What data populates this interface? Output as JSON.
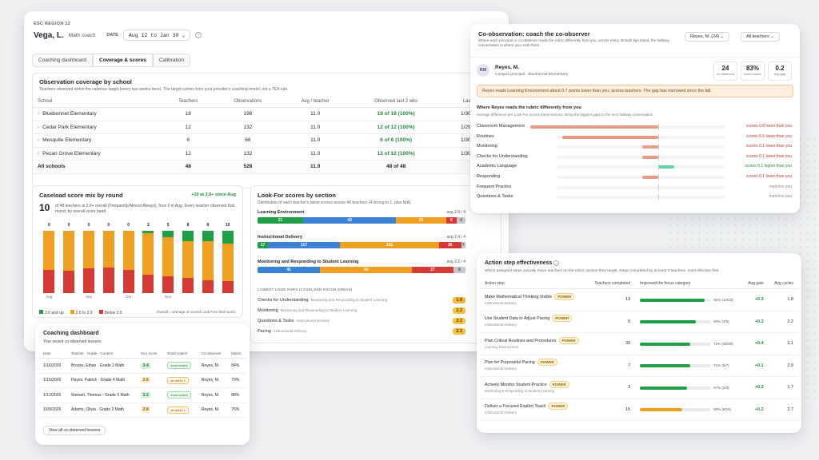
{
  "colors": {
    "green": "#1e9e45",
    "orange": "#f0a020",
    "red": "#d63a34",
    "blue": "#3b82d6",
    "grey": "#c5c9ce",
    "salmon": "#e89a85",
    "teal": "#5fd3a9"
  },
  "header": {
    "region": "ESC REGION 12",
    "name": "Vega, L.",
    "role": "Math coach",
    "date_label": "DATE",
    "date_value": "Aug 12 to Jan 30",
    "tabs": [
      "Coaching dashboard",
      "Coverage & scores",
      "Calibration"
    ]
  },
  "coverage": {
    "title": "Observation coverage by school",
    "subtitle": "Teachers observed within the cadence target (every two weeks here). The target comes from your provider's coaching model, not a TEA rule.",
    "headers": [
      "School",
      "Teachers",
      "Observations",
      "Avg / teacher",
      "Observed last 2 wks",
      "Last visit"
    ],
    "rows": [
      [
        "Bluebonnet Elementary",
        "18",
        "198",
        "11.0",
        "18 of 18 (100%)",
        "1/30/2026"
      ],
      [
        "Cedar Park Elementary",
        "12",
        "132",
        "11.0",
        "12 of 12 (100%)",
        "1/29/2026"
      ],
      [
        "Mesquite Elementary",
        "6",
        "66",
        "11.0",
        "6 of 6 (100%)",
        "1/30/2026"
      ],
      [
        "Pecan Grove Elementary",
        "12",
        "132",
        "11.0",
        "12 of 12 (100%)",
        "1/30/2026"
      ]
    ],
    "total": [
      "All schools",
      "48",
      "528",
      "11.0",
      "48 of 48",
      ""
    ]
  },
  "caseload": {
    "title": "Caseload score mix by round",
    "delta": "+10 at 3.0+ since Aug",
    "big": "10",
    "desc": "of 48 teachers at 3.0+ overall (Frequently/Almost Always), from 0 in Aug. Every teacher observed that round, by overall score band.",
    "top_labels": [
      "0",
      "0",
      "0",
      "0",
      "0",
      "2",
      "5",
      "8",
      "8",
      "10"
    ],
    "months": [
      "Aug",
      "",
      "Sep",
      "",
      "Oct",
      "",
      "Nov",
      "",
      "",
      ""
    ],
    "legend": [
      "3.0 and up",
      "2.0 to 2.9",
      "Below 2.0"
    ],
    "note": "Overall = average of scored Look Fors that round."
  },
  "caseload_chart": {
    "type": "bar",
    "series": [
      {
        "name": "3.0 and up",
        "values": [
          0,
          0,
          0,
          0,
          0,
          2,
          5,
          8,
          8,
          10
        ]
      },
      {
        "name": "2.0 to 2.9",
        "values": [
          30,
          31,
          29,
          28,
          30,
          32,
          30,
          28,
          30,
          29
        ]
      },
      {
        "name": "Below 2.0",
        "values": [
          18,
          17,
          19,
          20,
          18,
          14,
          13,
          12,
          10,
          9
        ]
      }
    ]
  },
  "lookfor": {
    "title": "Look-For scores by section",
    "desc": "Distribution of each teacher's latest scores across 48 teachers (4 strong to 1, plus N/A).",
    "sections": [
      {
        "name": "Learning Environment",
        "avg": "avg 2.9 / 4",
        "segs": [
          [
            "21",
            21,
            "green"
          ],
          [
            "43",
            43,
            "blue"
          ],
          [
            "23",
            23,
            "orange"
          ],
          [
            "5",
            5,
            "red"
          ],
          [
            "4",
            4,
            "grey"
          ]
        ]
      },
      {
        "name": "Instructional Delivery",
        "avg": "avg 2.4 / 4",
        "segs": [
          [
            "17",
            17,
            "green"
          ],
          [
            "117",
            117,
            "blue"
          ],
          [
            "161",
            161,
            "orange"
          ],
          [
            "36",
            36,
            "red"
          ],
          [
            "7",
            7,
            "grey"
          ]
        ]
      },
      {
        "name": "Monitoring and Responding to Student Learning",
        "avg": "avg 2.2 / 4",
        "segs": [
          [
            "41",
            41,
            "blue"
          ],
          [
            "60",
            60,
            "orange"
          ],
          [
            "27",
            27,
            "red"
          ],
          [
            "8",
            8,
            "grey"
          ]
        ]
      }
    ],
    "focus_title": "LOWEST LOOK FORS (CASELOAD FOCUS AREAS)",
    "focus": [
      [
        "Checks for Understanding",
        "Monitoring and Responding to Student Learning",
        "1.9"
      ],
      [
        "Monitoring",
        "Monitoring and Responding to Student Learning",
        "2.2"
      ],
      [
        "Questions & Tasks",
        "Instructional Delivery",
        "2.3"
      ],
      [
        "Pacing",
        "Instructional Delivery",
        "2.3"
      ]
    ]
  },
  "coaching": {
    "title": "Coaching dashboard",
    "subtitle": "Your recent co-observed lessons",
    "headers": [
      "Date",
      "Teacher · Grade · Content",
      "Your score",
      "Exact match",
      "Co-observer",
      "Match"
    ],
    "rows": [
      [
        "1/16/2026",
        "Brooks, Ethan · Grade 2 Math",
        "3.4",
        "exact match",
        "Reyes, M.",
        "84%"
      ],
      [
        "1/15/2026",
        "Hayes, Patrick · Grade 4 Math",
        "2.6",
        "all within 1",
        "Reyes, M.",
        "70%"
      ],
      [
        "1/12/2026",
        "Stewart, Thomas · Grade 5 Math",
        "3.2",
        "exact match",
        "Reyes, M.",
        "88%"
      ],
      [
        "1/09/2026",
        "Adams, Olivia · Grade 2 Math",
        "2.8",
        "all within 1",
        "Reyes, M.",
        "75%"
      ]
    ],
    "button": "View all co-observed lessons"
  },
  "coobs": {
    "title": "Co-observation: coach the co-observer",
    "desc": "Where each principal or co-observer reads the rubric differently from you, across every. Bctuith tigs stand, the hallway conversation is where you north them.",
    "select1": "Reyes, M. (24)",
    "select2": "All teachers",
    "initials": "RM",
    "person": "Reyes, M.",
    "person_role": "Campus principal · Bluebonnet Elementary",
    "stats": [
      [
        "24",
        "co-observed"
      ],
      [
        "83%",
        "exact match"
      ],
      [
        "0.2",
        "avg gap"
      ]
    ],
    "alert": "Reyes reads Learning Environment about 0.7 points lower than you, across teachers. The gap has narrowed since the fall.",
    "diff_title": "Where Reyes reads the rubric differently from you",
    "diff_desc": "Average difference per Look For across these lessons. Bring the biggest gaps to the next hallway conversation.",
    "rows": [
      [
        "Classroom Management",
        -0.8,
        "scores 0.8 lower than you"
      ],
      [
        "Routines",
        -0.6,
        "scores 0.6 lower than you"
      ],
      [
        "Monitoring",
        -0.1,
        "scores 0.1 lower than you"
      ],
      [
        "Checks for Understanding",
        -0.1,
        "scores 0.1 lower than you"
      ],
      [
        "Academic Language",
        0.1,
        "scores 0.1 higher than you"
      ],
      [
        "Responding",
        -0.1,
        "scores 0.1 lower than you"
      ],
      [
        "Frequent Practice",
        0,
        "matches you"
      ],
      [
        "Questions & Tasks",
        0,
        "matches you"
      ]
    ]
  },
  "action": {
    "title": "Action step effectiveness",
    "desc": "Which assigned steps actually move teachers on the rubric section they target. Steps completed by at least 3 teachers, most effective first.",
    "headers": [
      "Action step",
      "Teachers completed",
      "Improved the focus category",
      "Avg gain",
      "Avg cycles"
    ],
    "power": "POWER",
    "rows": [
      [
        "Make Mathematical Thinking Visible",
        "Instructional Delivery",
        "13",
        0.92,
        "92% (12/13)",
        "+0.3",
        "1.8",
        "green"
      ],
      [
        "Use Student Data to Adjust Pacing",
        "Instructional Delivery",
        "5",
        0.8,
        "80% (4/5)",
        "+0.3",
        "2.2",
        "green"
      ],
      [
        "Plan Critical Routines and Procedures",
        "Learning Environment",
        "39",
        0.72,
        "72% (28/39)",
        "+0.4",
        "2.1",
        "green"
      ],
      [
        "Plan for Purposeful Pacing",
        "Instructional Delivery",
        "7",
        0.71,
        "71% (5/7)",
        "+0.1",
        "2.9",
        "green"
      ],
      [
        "Actively Monitor Student Practice",
        "Monitoring & Responding to Student Learning",
        "3",
        0.67,
        "67% (2/3)",
        "+0.3",
        "1.7",
        "green"
      ],
      [
        "Deliver a Focused Explicit Teach",
        "Instructional Delivery",
        "15",
        0.6,
        "60% (9/15)",
        "+0.2",
        "2.7",
        "orange"
      ]
    ]
  }
}
